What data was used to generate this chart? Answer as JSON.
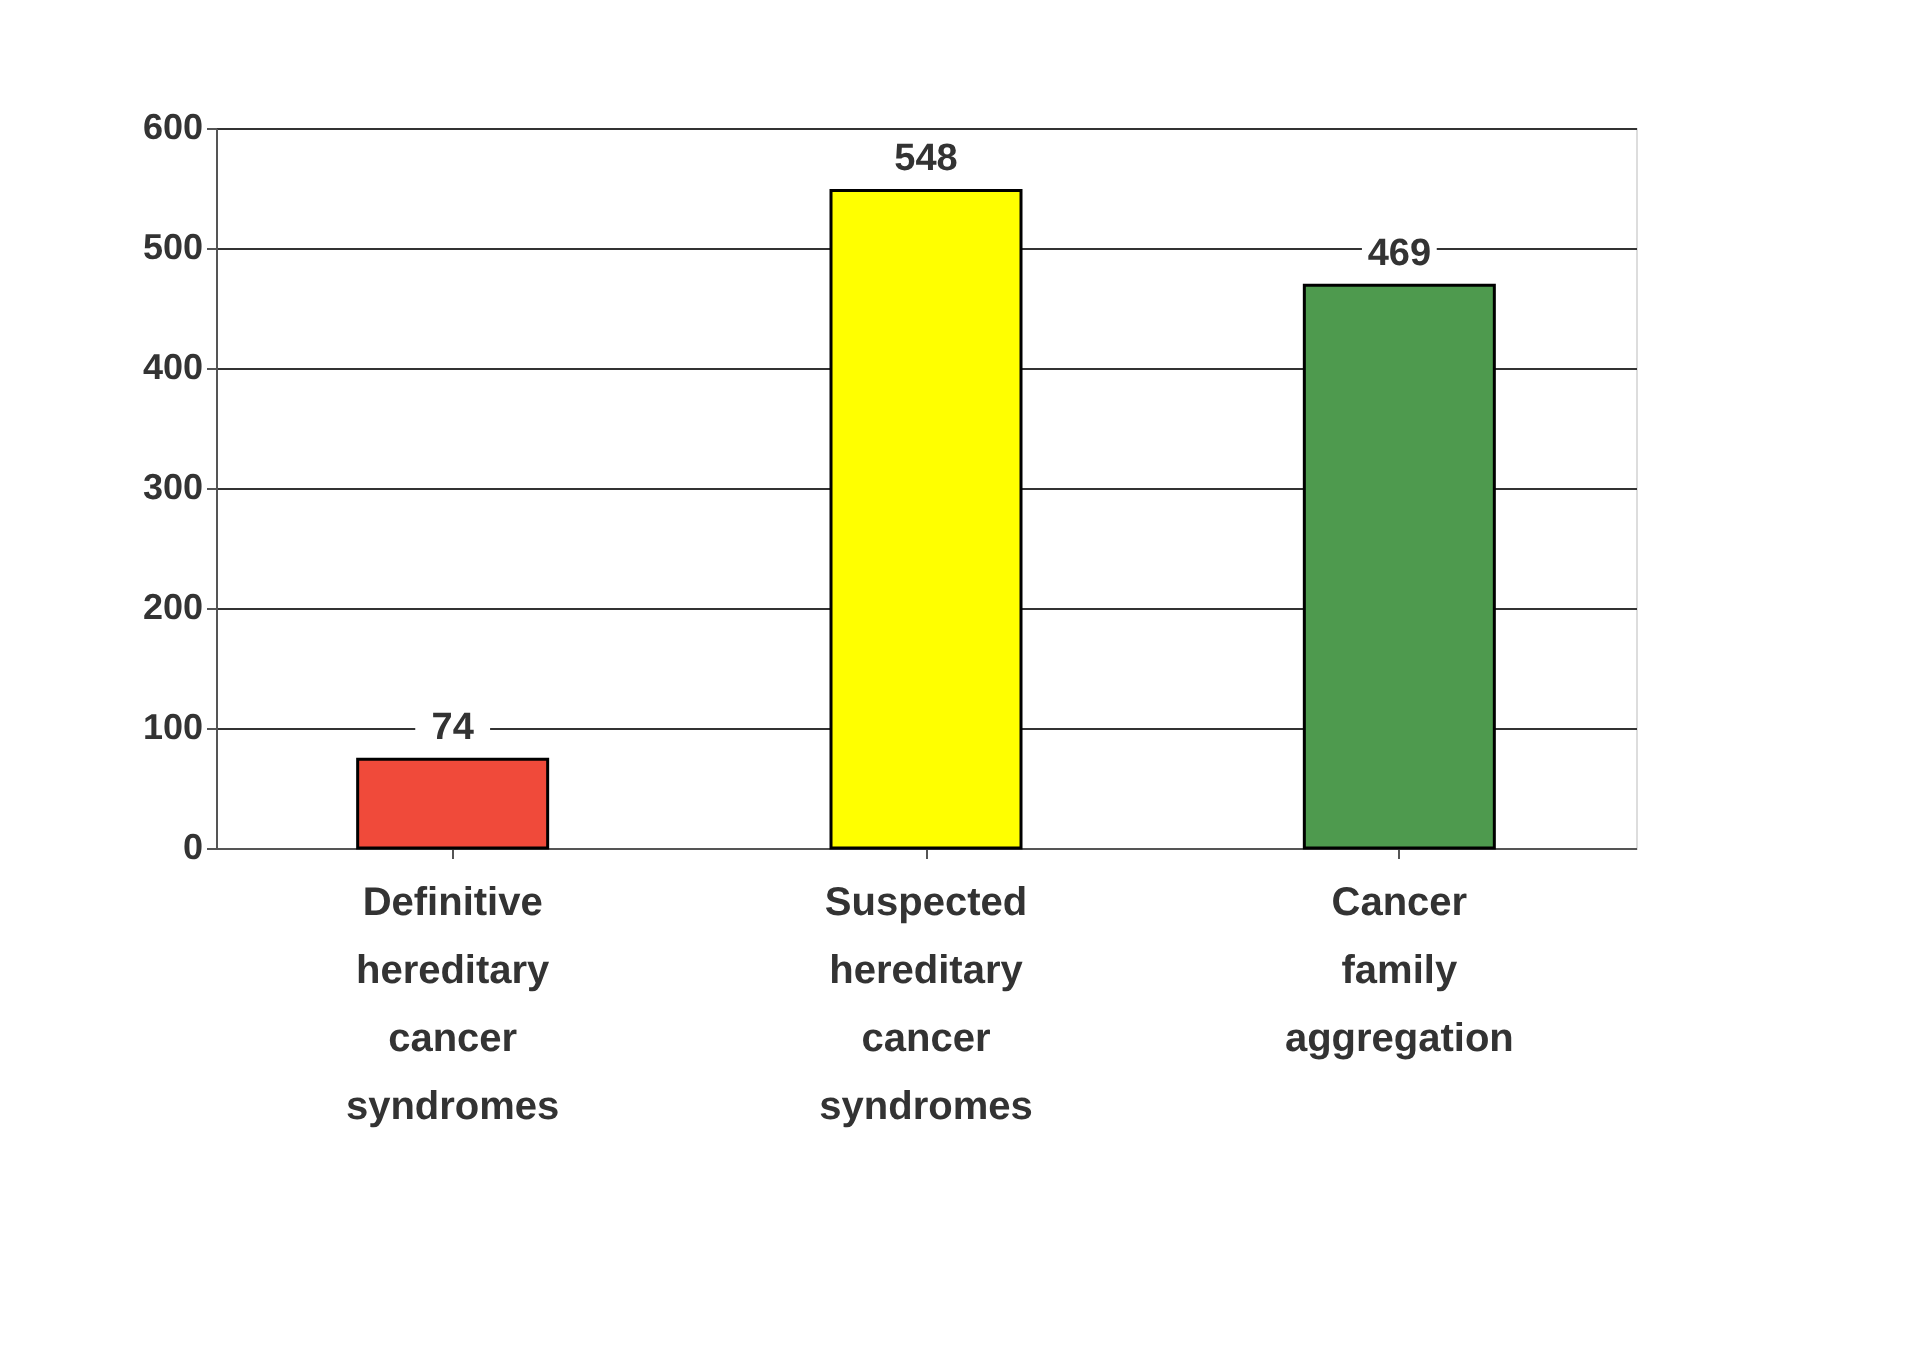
{
  "chart_data": {
    "type": "bar",
    "categories": [
      "Definitive hereditary cancer syndromes",
      "Suspected hereditary cancer syndromes",
      "Cancer family aggregation"
    ],
    "values": [
      74,
      548,
      469
    ],
    "colors": [
      "#f04a3a",
      "#ffff00",
      "#4e9a4e"
    ],
    "ylim": [
      0,
      600
    ],
    "yticks": [
      0,
      100,
      200,
      300,
      400,
      500,
      600
    ],
    "grid": "y",
    "data_labels": true
  }
}
